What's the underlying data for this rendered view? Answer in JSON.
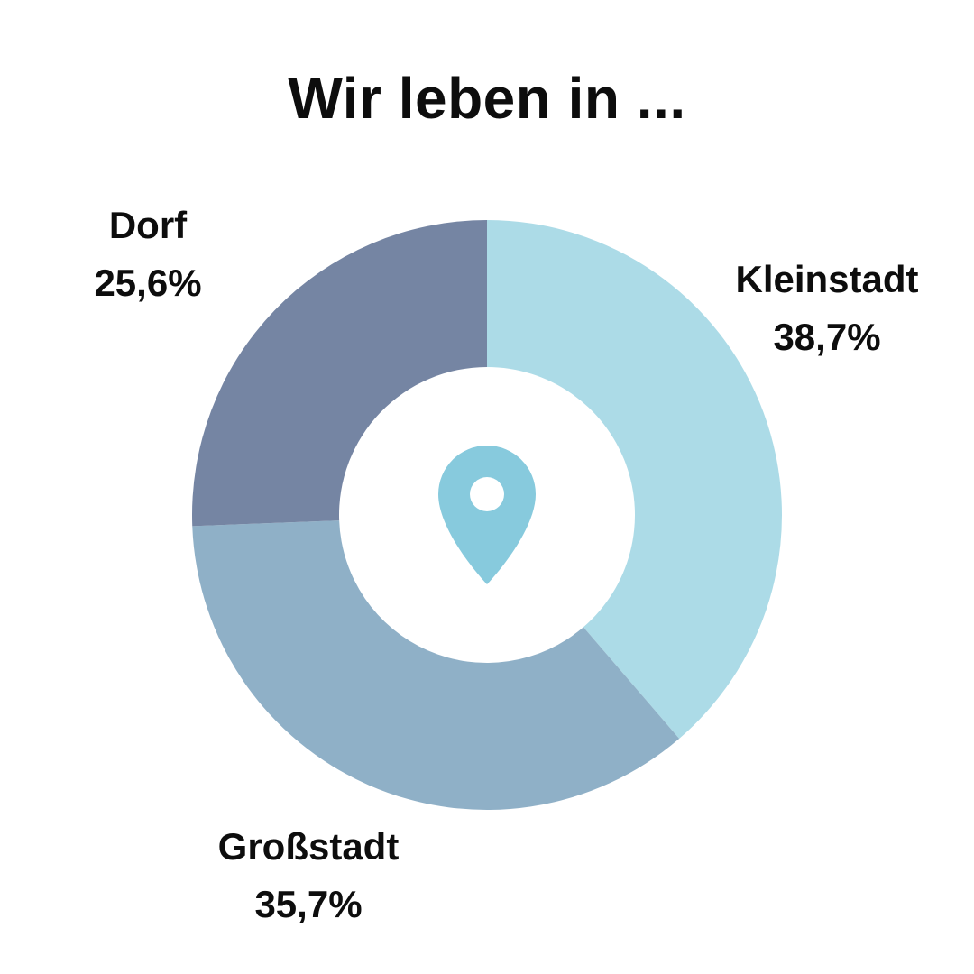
{
  "title": "Wir leben in ...",
  "chart_data": {
    "type": "pie",
    "style": "donut",
    "title": "Wir leben in ...",
    "slices": [
      {
        "label": "Kleinstadt",
        "value": 38.7,
        "value_label": "38,7%",
        "color": "#acdbe7"
      },
      {
        "label": "Großstadt",
        "value": 35.7,
        "value_label": "35,7%",
        "color": "#8fb0c7"
      },
      {
        "label": "Dorf",
        "value": 25.6,
        "value_label": "25,6%",
        "color": "#7585a3"
      }
    ],
    "start": "top",
    "direction": "clockwise",
    "center_icon": "map-pin-icon",
    "center_icon_color": "#87cadd"
  }
}
